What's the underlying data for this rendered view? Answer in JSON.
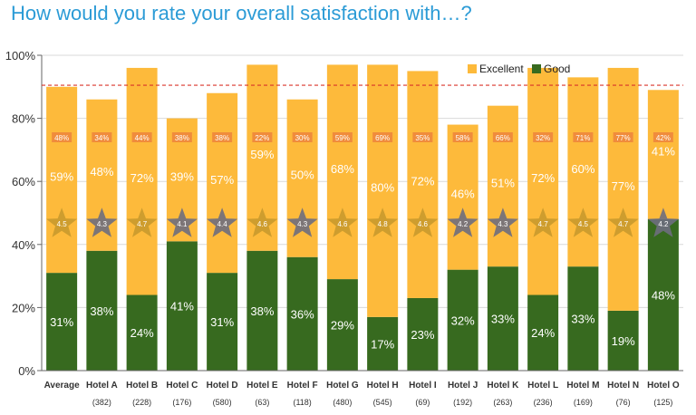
{
  "title": "How would you rate your overall satisfaction with…?",
  "chart_data": {
    "type": "bar",
    "stacked": true,
    "categories": [
      "Average",
      "Hotel A",
      "Hotel B",
      "Hotel C",
      "Hotel D",
      "Hotel E",
      "Hotel F",
      "Hotel G",
      "Hotel H",
      "Hotel I",
      "Hotel J",
      "Hotel K",
      "Hotel L",
      "Hotel M",
      "Hotel N",
      "Hotel O"
    ],
    "sample_sizes": [
      "",
      "(382)",
      "(228)",
      "(176)",
      "(580)",
      "(63)",
      "(118)",
      "(480)",
      "(545)",
      "(69)",
      "(192)",
      "(263)",
      "(236)",
      "(169)",
      "(76)",
      "(125)"
    ],
    "series": [
      {
        "name": "Good",
        "color": "#376a1f",
        "values": [
          31,
          38,
          24,
          41,
          31,
          38,
          36,
          29,
          17,
          23,
          32,
          33,
          24,
          33,
          19,
          48
        ]
      },
      {
        "name": "Excellent",
        "color": "#fdba3b",
        "values": [
          59,
          48,
          72,
          39,
          57,
          59,
          50,
          68,
          80,
          72,
          46,
          51,
          72,
          60,
          77,
          41
        ]
      }
    ],
    "box_labels": [
      "48%",
      "34%",
      "44%",
      "38%",
      "38%",
      "22%",
      "30%",
      "59%",
      "69%",
      "35%",
      "58%",
      "66%",
      "32%",
      "71%",
      "77%",
      "42%"
    ],
    "star_scores": [
      "4.5",
      "4.3",
      "4.7",
      "4.1",
      "4.4",
      "4.6",
      "4.3",
      "4.6",
      "4.8",
      "4.6",
      "4.2",
      "4.3",
      "4.7",
      "4.5",
      "4.7",
      "4.2"
    ],
    "star_level": 46.5,
    "reference_line": 90.5,
    "ylim": [
      0,
      100
    ],
    "yticks": [
      "0%",
      "20%",
      "40%",
      "60%",
      "80%",
      "100%"
    ],
    "legend_position": "top-right",
    "colors": {
      "good": "#376a1f",
      "excellent": "#fdba3b",
      "box": "#f08c3c",
      "star_light": "#c99a2e",
      "star_dark": "#6e6e7e",
      "ref_line": "#d9342b",
      "grid": "#d9d9d9"
    }
  }
}
